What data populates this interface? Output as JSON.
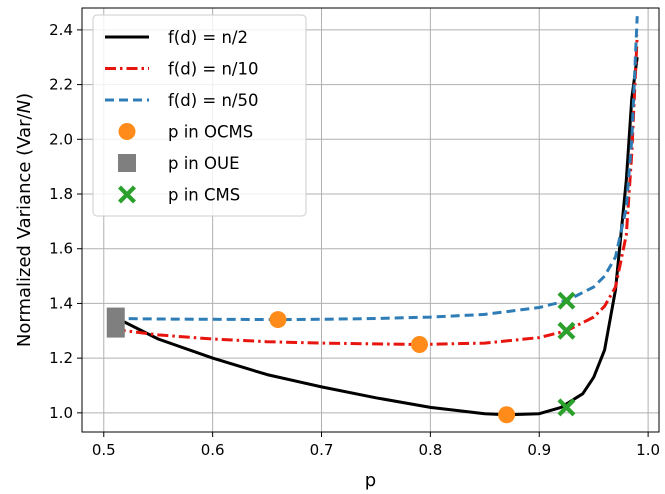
{
  "chart_data": {
    "type": "line",
    "xlabel": "p",
    "ylabel": "Normalized Variance (Var/N)",
    "xlim": [
      0.48,
      1.01
    ],
    "ylim": [
      0.93,
      2.48
    ],
    "xticks": [
      0.5,
      0.6,
      0.7,
      0.8,
      0.9,
      1.0
    ],
    "xtick_labels": [
      "0.5",
      "0.6",
      "0.7",
      "0.8",
      "0.9",
      "1.0"
    ],
    "yticks": [
      1.0,
      1.2,
      1.4,
      1.6,
      1.8,
      2.0,
      2.2,
      2.4
    ],
    "ytick_labels": [
      "1.0",
      "1.2",
      "1.4",
      "1.6",
      "1.8",
      "2.0",
      "2.2",
      "2.4"
    ],
    "grid": true,
    "legend_position": "top-left",
    "series": [
      {
        "name": "f(d) = n/2",
        "color": "#000000",
        "style": "solid",
        "x": [
          0.51,
          0.55,
          0.6,
          0.65,
          0.7,
          0.75,
          0.8,
          0.85,
          0.87,
          0.9,
          0.92,
          0.94,
          0.95,
          0.96,
          0.97,
          0.98,
          0.985,
          0.99
        ],
        "y": [
          1.35,
          1.27,
          1.2,
          1.14,
          1.095,
          1.055,
          1.02,
          0.997,
          0.993,
          0.997,
          1.02,
          1.07,
          1.13,
          1.23,
          1.45,
          1.85,
          2.15,
          2.3
        ]
      },
      {
        "name": "f(d) = n/10",
        "color": "#e8140e",
        "style": "dashdot",
        "x": [
          0.51,
          0.55,
          0.6,
          0.65,
          0.7,
          0.75,
          0.79,
          0.85,
          0.9,
          0.925,
          0.95,
          0.96,
          0.97,
          0.98,
          0.985,
          0.99
        ],
        "y": [
          1.305,
          1.285,
          1.27,
          1.26,
          1.255,
          1.252,
          1.25,
          1.255,
          1.275,
          1.3,
          1.35,
          1.39,
          1.46,
          1.65,
          1.95,
          2.38
        ]
      },
      {
        "name": "f(d) = n/50",
        "color": "#2f7db6",
        "style": "dashed",
        "x": [
          0.51,
          0.55,
          0.6,
          0.66,
          0.7,
          0.75,
          0.8,
          0.85,
          0.9,
          0.925,
          0.95,
          0.96,
          0.97,
          0.98,
          0.985,
          0.99
        ],
        "y": [
          1.345,
          1.343,
          1.342,
          1.341,
          1.342,
          1.345,
          1.35,
          1.36,
          1.385,
          1.41,
          1.46,
          1.5,
          1.57,
          1.75,
          2.0,
          2.45
        ]
      }
    ],
    "markers": [
      {
        "name": "p in OCMS",
        "shape": "circle",
        "color": "#ff8c1a",
        "points": [
          {
            "x": 0.66,
            "y": 1.341
          },
          {
            "x": 0.79,
            "y": 1.25
          },
          {
            "x": 0.87,
            "y": 0.993
          }
        ]
      },
      {
        "name": "p in OUE",
        "shape": "square",
        "color": "#7f7f7f",
        "points": [
          {
            "x": 0.511,
            "y": 1.33
          }
        ]
      },
      {
        "name": "p in CMS",
        "shape": "x",
        "color": "#2ca02c",
        "points": [
          {
            "x": 0.925,
            "y": 1.41
          },
          {
            "x": 0.925,
            "y": 1.3
          },
          {
            "x": 0.925,
            "y": 1.02
          }
        ]
      }
    ]
  }
}
